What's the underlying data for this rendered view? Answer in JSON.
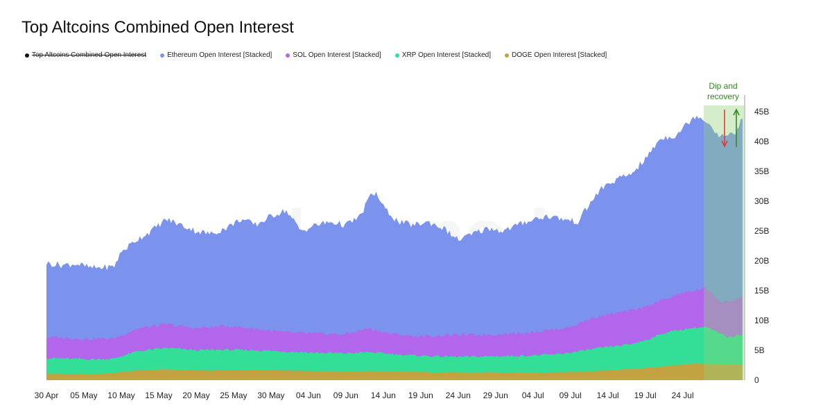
{
  "chart_data": {
    "type": "area",
    "title": "Top Altcoins Combined Open Interest",
    "watermark": "glassnode",
    "stacked": true,
    "legend": [
      {
        "name": "Top Altcoins Combined Open Interest",
        "color": "#111111",
        "hidden": true
      },
      {
        "name": "Ethereum Open Interest [Stacked]",
        "color": "#7b93ec"
      },
      {
        "name": "SOL Open Interest [Stacked]",
        "color": "#b266ec"
      },
      {
        "name": "XRP Open Interest [Stacked]",
        "color": "#33df96"
      },
      {
        "name": "DOGE Open Interest [Stacked]",
        "color": "#c3a241"
      }
    ],
    "x_ticks": [
      "30 Apr",
      "05 May",
      "10 May",
      "15 May",
      "20 May",
      "25 May",
      "30 May",
      "04 Jun",
      "09 Jun",
      "14 Jun",
      "19 Jun",
      "24 Jun",
      "29 Jun",
      "04 Jul",
      "09 Jul",
      "14 Jul",
      "19 Jul",
      "24 Jul"
    ],
    "y_ticks": [
      "0",
      "5B",
      "10B",
      "15B",
      "20B",
      "25B",
      "30B",
      "35B",
      "40B",
      "45B"
    ],
    "ylim": [
      0,
      45
    ],
    "x_start_day": 0,
    "x_end_day": 93,
    "series": [
      {
        "name": "DOGE Open Interest [Stacked]",
        "color": "#c3a241",
        "points": [
          [
            0,
            1.1
          ],
          [
            6,
            1.0
          ],
          [
            9,
            1.2
          ],
          [
            12,
            1.6
          ],
          [
            16,
            1.8
          ],
          [
            22,
            1.6
          ],
          [
            28,
            1.7
          ],
          [
            34,
            1.6
          ],
          [
            40,
            1.4
          ],
          [
            43,
            1.5
          ],
          [
            48,
            1.4
          ],
          [
            53,
            1.3
          ],
          [
            58,
            1.3
          ],
          [
            63,
            1.3
          ],
          [
            68,
            1.3
          ],
          [
            72,
            1.4
          ],
          [
            76,
            1.7
          ],
          [
            80,
            2.0
          ],
          [
            84,
            2.5
          ],
          [
            87,
            2.8
          ],
          [
            89,
            2.7
          ],
          [
            91,
            2.6
          ],
          [
            93,
            2.6
          ]
        ]
      },
      {
        "name": "XRP Open Interest [Stacked]",
        "color": "#33df96",
        "points": [
          [
            0,
            3.7
          ],
          [
            6,
            3.5
          ],
          [
            9,
            3.6
          ],
          [
            12,
            4.8
          ],
          [
            16,
            5.4
          ],
          [
            20,
            5.0
          ],
          [
            24,
            5.1
          ],
          [
            28,
            5.0
          ],
          [
            32,
            4.8
          ],
          [
            36,
            4.6
          ],
          [
            40,
            4.5
          ],
          [
            43,
            4.7
          ],
          [
            48,
            4.2
          ],
          [
            52,
            4.0
          ],
          [
            56,
            3.9
          ],
          [
            60,
            4.0
          ],
          [
            64,
            4.1
          ],
          [
            68,
            4.3
          ],
          [
            71,
            4.8
          ],
          [
            74,
            5.4
          ],
          [
            78,
            6.0
          ],
          [
            80,
            6.7
          ],
          [
            83,
            8.1
          ],
          [
            86,
            8.7
          ],
          [
            88,
            8.9
          ],
          [
            89,
            8.4
          ],
          [
            91,
            7.2
          ],
          [
            93,
            7.7
          ]
        ]
      },
      {
        "name": "SOL Open Interest [Stacked]",
        "color": "#b266ec",
        "points": [
          [
            0,
            7.2
          ],
          [
            6,
            6.9
          ],
          [
            9,
            7.0
          ],
          [
            12,
            8.6
          ],
          [
            16,
            9.4
          ],
          [
            20,
            8.7
          ],
          [
            24,
            9.1
          ],
          [
            28,
            8.6
          ],
          [
            32,
            8.0
          ],
          [
            36,
            7.8
          ],
          [
            40,
            7.7
          ],
          [
            43,
            8.7
          ],
          [
            46,
            7.8
          ],
          [
            50,
            7.3
          ],
          [
            54,
            7.6
          ],
          [
            58,
            7.6
          ],
          [
            62,
            7.8
          ],
          [
            66,
            8.2
          ],
          [
            70,
            8.9
          ],
          [
            73,
            10.5
          ],
          [
            76,
            11.2
          ],
          [
            79,
            11.9
          ],
          [
            82,
            13.3
          ],
          [
            85,
            14.6
          ],
          [
            88,
            15.4
          ],
          [
            89,
            14.6
          ],
          [
            90,
            13.0
          ],
          [
            92,
            13.5
          ],
          [
            93,
            13.8
          ]
        ]
      },
      {
        "name": "Ethereum Open Interest [Stacked]",
        "color": "#7b93ec",
        "points": [
          [
            0,
            19.6
          ],
          [
            2,
            19.3
          ],
          [
            4,
            19.5
          ],
          [
            6,
            18.8
          ],
          [
            9,
            19.0
          ],
          [
            10,
            21.5
          ],
          [
            12,
            23.5
          ],
          [
            14,
            25.0
          ],
          [
            16,
            27.0
          ],
          [
            18,
            26.0
          ],
          [
            20,
            25.0
          ],
          [
            22,
            24.5
          ],
          [
            24,
            25.5
          ],
          [
            26,
            27.0
          ],
          [
            28,
            26.0
          ],
          [
            30,
            27.5
          ],
          [
            32,
            28.5
          ],
          [
            34,
            25.0
          ],
          [
            36,
            26.0
          ],
          [
            38,
            26.5
          ],
          [
            40,
            26.0
          ],
          [
            42,
            27.5
          ],
          [
            43,
            30.5
          ],
          [
            44,
            31.5
          ],
          [
            45,
            29.0
          ],
          [
            47,
            26.5
          ],
          [
            49,
            26.0
          ],
          [
            51,
            26.5
          ],
          [
            53,
            25.5
          ],
          [
            55,
            23.5
          ],
          [
            57,
            24.5
          ],
          [
            59,
            25.5
          ],
          [
            61,
            25.0
          ],
          [
            63,
            26.0
          ],
          [
            65,
            27.0
          ],
          [
            67,
            27.5
          ],
          [
            69,
            27.0
          ],
          [
            71,
            26.5
          ],
          [
            72,
            28.5
          ],
          [
            74,
            32.0
          ],
          [
            76,
            33.5
          ],
          [
            78,
            34.5
          ],
          [
            80,
            37.0
          ],
          [
            82,
            40.5
          ],
          [
            84,
            41.0
          ],
          [
            86,
            43.5
          ],
          [
            87,
            44.5
          ],
          [
            88,
            43.5
          ],
          [
            89,
            42.5
          ],
          [
            90,
            40.5
          ],
          [
            91,
            41.5
          ],
          [
            92,
            41.0
          ],
          [
            93,
            44.0
          ]
        ]
      }
    ],
    "highlight_range": [
      88,
      93
    ],
    "annotation": "Dip and\nrecovery",
    "annotation_lines": [
      "Dip and",
      "recovery"
    ],
    "arrows": [
      {
        "direction": "down",
        "color": "#e53935"
      },
      {
        "direction": "up",
        "color": "#2e8b1e"
      }
    ]
  }
}
